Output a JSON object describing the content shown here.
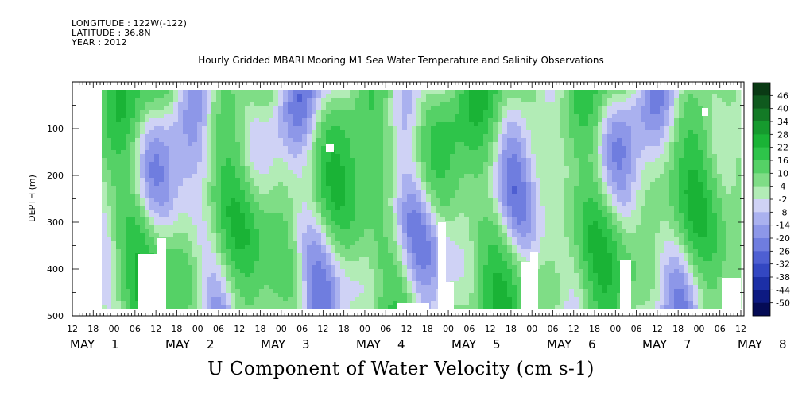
{
  "header": {
    "longitude": "LONGITUDE : 122W(-122)",
    "latitude": "LATITUDE : 36.8N",
    "year": "YEAR : 2012"
  },
  "chart_data": {
    "type": "heatmap",
    "title": "Hourly Gridded MBARI Mooring M1 Sea Water Temperature and Salinity Observations",
    "xlabel": "U Component of Water Velocity (cm s-1)",
    "ylabel": "DEPTH (m)",
    "ylim": [
      500,
      0
    ],
    "y_ticks": [
      100,
      200,
      300,
      400,
      500
    ],
    "x_hour_ticks": [
      "12",
      "18",
      "00",
      "06",
      "12",
      "18",
      "00",
      "06",
      "12",
      "18",
      "00",
      "06",
      "12",
      "18",
      "00",
      "06",
      "12",
      "18",
      "00",
      "06",
      "12",
      "18",
      "00",
      "06",
      "12",
      "18",
      "00",
      "06",
      "12",
      "18",
      "00",
      "06",
      "12"
    ],
    "x_day_labels": [
      {
        "month": "MAY",
        "day": "1"
      },
      {
        "month": "MAY",
        "day": "2"
      },
      {
        "month": "MAY",
        "day": "3"
      },
      {
        "month": "MAY",
        "day": "4"
      },
      {
        "month": "MAY",
        "day": "5"
      },
      {
        "month": "MAY",
        "day": "6"
      },
      {
        "month": "MAY",
        "day": "7"
      },
      {
        "month": "MAY",
        "day": "8"
      }
    ],
    "colorbar": {
      "labels": [
        "46",
        "40",
        "34",
        "28",
        "22",
        "16",
        "10",
        "4",
        "-2",
        "-8",
        "-14",
        "-20",
        "-26",
        "-32",
        "-38",
        "-44",
        "-50"
      ],
      "colors": [
        "#0a3a14",
        "#0f5a1e",
        "#137a26",
        "#169a2e",
        "#1ab336",
        "#2ec44a",
        "#55d166",
        "#7fdd86",
        "#b2ecb6",
        "#cfd2f5",
        "#aab1ef",
        "#8d97e8",
        "#6f7ddf",
        "#4e5fd2",
        "#3347c2",
        "#1c2fa6",
        "#0d1a82",
        "#050b55"
      ]
    },
    "legend": "right"
  }
}
